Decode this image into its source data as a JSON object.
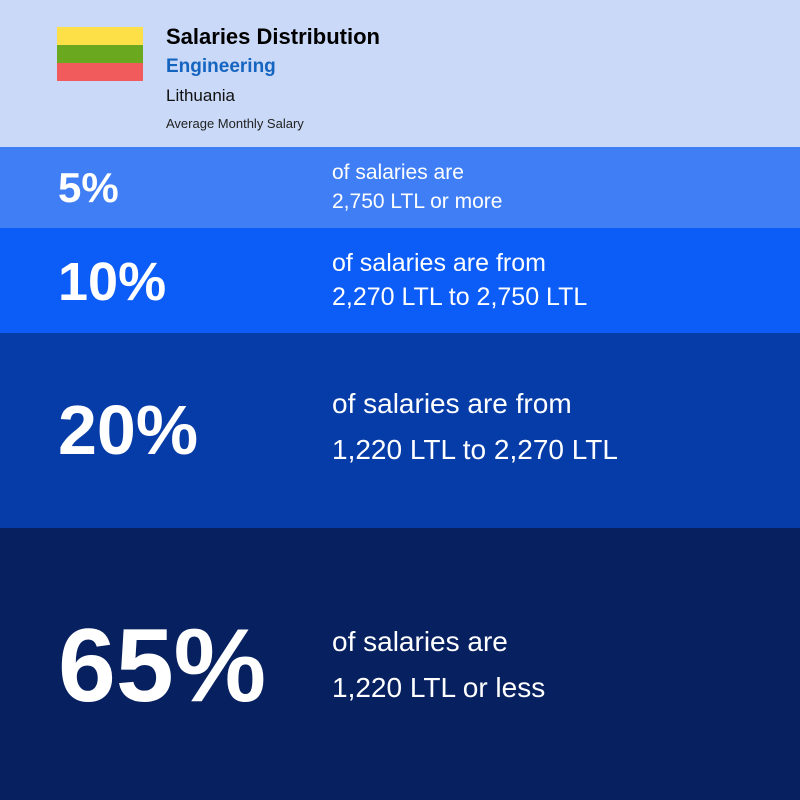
{
  "header": {
    "title": "Salaries Distribution",
    "subtitle": "Engineering",
    "country": "Lithuania",
    "caption": "Average Monthly Salary"
  },
  "bands": [
    {
      "percent": "5%",
      "lines": [
        "of salaries are",
        "2,750 LTL or more"
      ]
    },
    {
      "percent": "10%",
      "lines": [
        "of salaries are from",
        "2,270 LTL to 2,750 LTL"
      ]
    },
    {
      "percent": "20%",
      "lines": [
        "of salaries are from",
        "1,220 LTL to 2,270 LTL"
      ]
    },
    {
      "percent": "65%",
      "lines": [
        "of salaries are",
        "1,220 LTL or less"
      ]
    }
  ]
}
